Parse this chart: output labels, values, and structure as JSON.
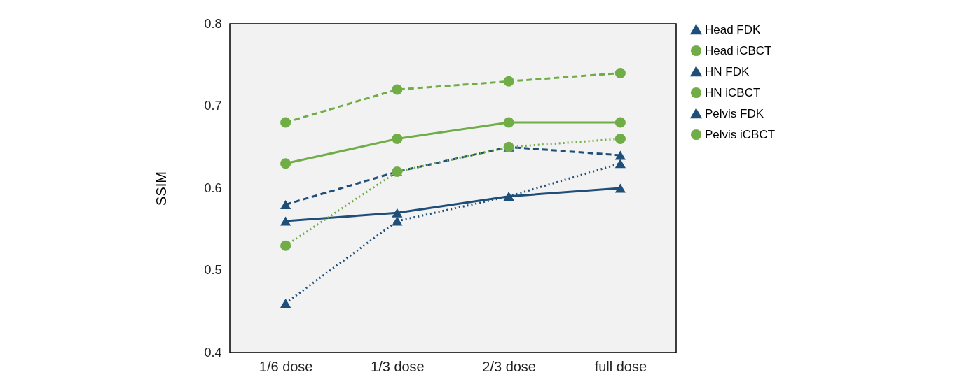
{
  "chart_data": {
    "type": "line",
    "ylabel": "SSIM",
    "categories": [
      "1/6 dose",
      "1/3 dose",
      "2/3 dose",
      "full dose"
    ],
    "ylim": [
      0.4,
      0.8
    ],
    "yticks": [
      0.4,
      0.5,
      0.6,
      0.7,
      0.8
    ],
    "grid": false,
    "legend": "right",
    "series": [
      {
        "name": "Head FDK",
        "color": "#1f4e79",
        "marker": "triangle",
        "line_style": "solid",
        "values": [
          0.56,
          0.57,
          0.59,
          0.6
        ]
      },
      {
        "name": "Head iCBCT",
        "color": "#70ad47",
        "marker": "circle",
        "line_style": "solid",
        "values": [
          0.63,
          0.66,
          0.68,
          0.68
        ]
      },
      {
        "name": "HN FDK",
        "color": "#1f4e79",
        "marker": "triangle",
        "line_style": "dashed",
        "values": [
          0.58,
          0.62,
          0.65,
          0.64
        ]
      },
      {
        "name": "HN iCBCT",
        "color": "#70ad47",
        "marker": "circle",
        "line_style": "dashed",
        "values": [
          0.68,
          0.72,
          0.73,
          0.74
        ]
      },
      {
        "name": "Pelvis FDK",
        "color": "#1f4e79",
        "marker": "triangle",
        "line_style": "dotted",
        "values": [
          0.46,
          0.56,
          0.59,
          0.63
        ]
      },
      {
        "name": "Pelvis iCBCT",
        "color": "#70ad47",
        "marker": "circle",
        "line_style": "dotted",
        "values": [
          0.53,
          0.62,
          0.65,
          0.66
        ]
      }
    ]
  }
}
